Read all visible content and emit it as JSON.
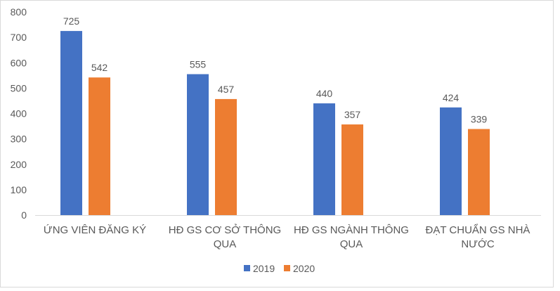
{
  "chart_data": {
    "type": "bar",
    "categories": [
      "ỨNG VIÊN ĐĂNG KÝ",
      "HĐ GS CƠ SỞ THÔNG QUA",
      "HĐ GS NGÀNH THÔNG QUA",
      "ĐẠT CHUẨN GS NHÀ NƯỚC"
    ],
    "category_lines": [
      [
        "ỨNG VIÊN ĐĂNG KÝ"
      ],
      [
        "HĐ GS CƠ SỞ THÔNG",
        "QUA"
      ],
      [
        "HĐ GS NGÀNH THÔNG",
        "QUA"
      ],
      [
        "ĐẠT CHUẨN GS NHÀ",
        "NƯỚC"
      ]
    ],
    "series": [
      {
        "name": "2019",
        "values": [
          725,
          555,
          440,
          424
        ],
        "color": "#4472C4"
      },
      {
        "name": "2020",
        "values": [
          542,
          457,
          357,
          339
        ],
        "color": "#ED7D31"
      }
    ],
    "ylim": [
      0,
      800
    ],
    "yticks": [
      0,
      100,
      200,
      300,
      400,
      500,
      600,
      700,
      800
    ],
    "grid": false,
    "legend": "bottom",
    "data_labels": true
  }
}
